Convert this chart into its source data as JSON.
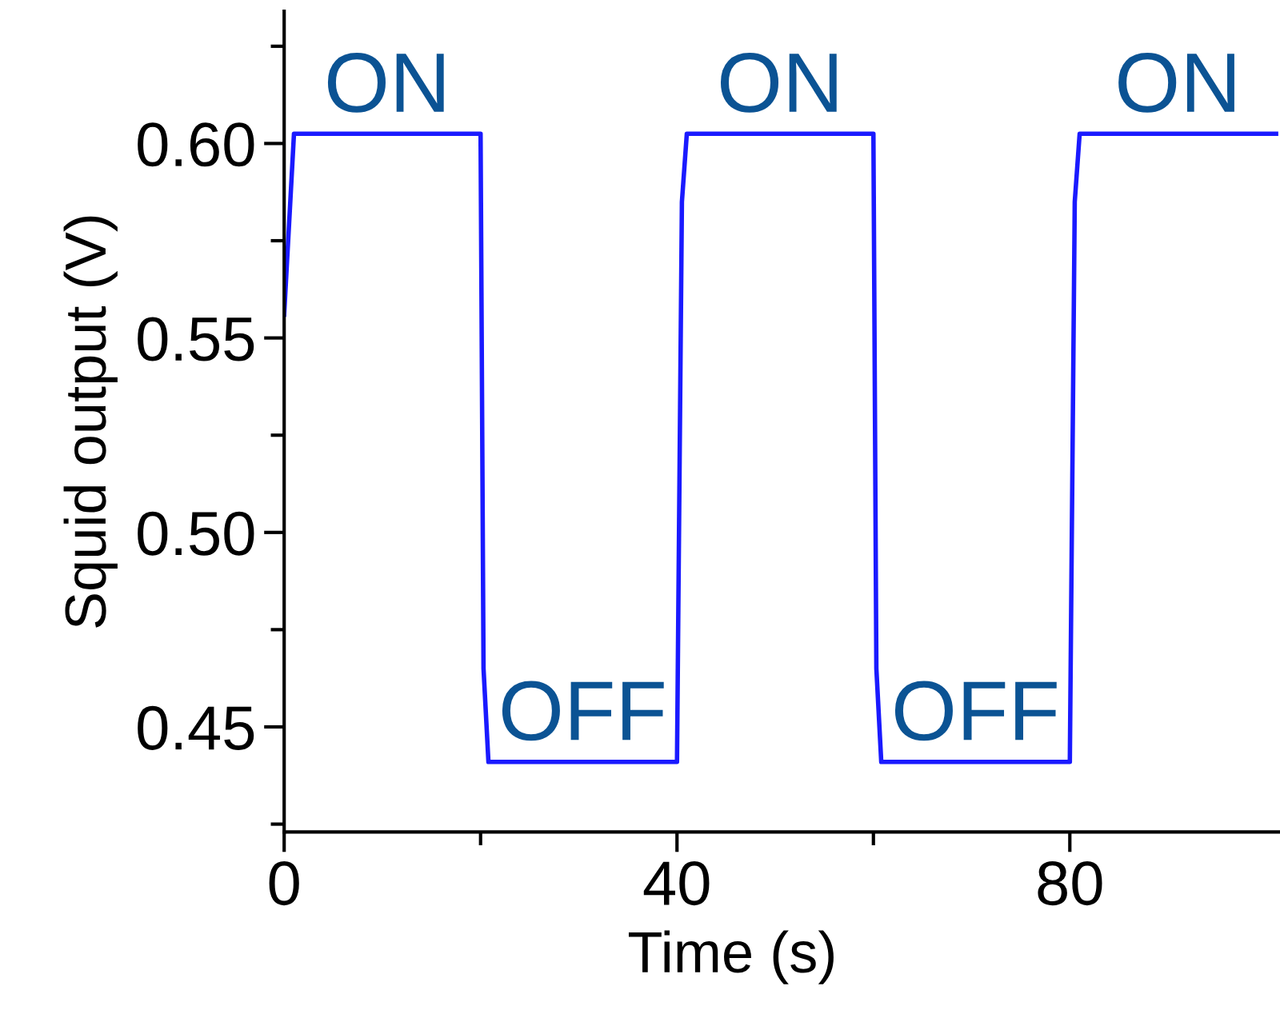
{
  "chart_data": {
    "type": "line",
    "xlabel": "Time (s)",
    "ylabel": "Squid output (V)",
    "x": [
      0,
      1.0,
      20.0,
      20.3,
      20.8,
      40.0,
      40.5,
      41.0,
      60.0,
      60.3,
      60.8,
      80.0,
      80.5,
      81.0,
      101
    ],
    "series": [
      {
        "color": "#1a1aff",
        "values": [
          0.556,
          0.6025,
          0.6025,
          0.465,
          0.441,
          0.441,
          0.585,
          0.6025,
          0.6025,
          0.465,
          0.441,
          0.441,
          0.585,
          0.6025,
          0.6025
        ]
      }
    ],
    "xlim": [
      0,
      101.4
    ],
    "ylim": [
      0.423,
      0.634
    ],
    "xticks": [
      0,
      {
        "value": 20,
        "label": null
      },
      40,
      {
        "value": 60,
        "label": null
      },
      80
    ],
    "yticks": [
      {
        "value": 0.425,
        "label": null
      },
      {
        "value": 0.45,
        "label": "0.45"
      },
      {
        "value": 0.475,
        "label": null
      },
      {
        "value": 0.5,
        "label": "0.50"
      },
      {
        "value": 0.525,
        "label": null
      },
      {
        "value": 0.55,
        "label": "0.55"
      },
      {
        "value": 0.575,
        "label": null
      },
      {
        "value": 0.6,
        "label": "0.60"
      },
      {
        "value": 0.625,
        "label": null
      }
    ],
    "grid": false,
    "legend": false,
    "marker": "none",
    "line_style": "solid",
    "annotations": [
      "ON",
      "OFF",
      "ON",
      "OFF",
      "ON"
    ]
  }
}
